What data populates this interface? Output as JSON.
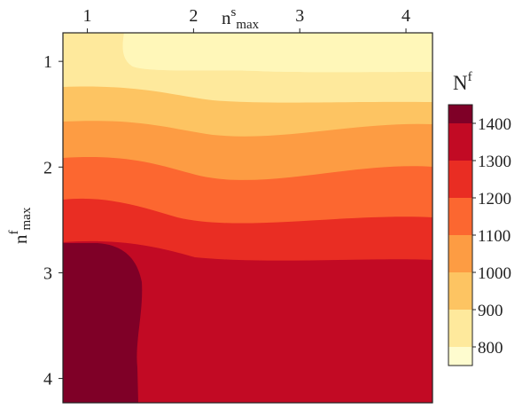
{
  "chart_data": {
    "type": "heatmap",
    "subtype": "filled-contour",
    "x_axis": {
      "label_main": "n",
      "label_sup": "s",
      "label_sub": "max",
      "position": "top",
      "ticks": [
        1,
        2,
        3,
        4
      ],
      "tick_labels": [
        "1",
        "2",
        "3",
        "4"
      ],
      "range": [
        0.77,
        4.25
      ]
    },
    "y_axis": {
      "label_main": "n",
      "label_sup": "f",
      "label_sub": "max",
      "inverted": true,
      "ticks": [
        1,
        2,
        3,
        4
      ],
      "tick_labels": [
        "1",
        "2",
        "3",
        "4"
      ],
      "range": [
        0.73,
        4.23
      ]
    },
    "colorbar": {
      "title_main": "N",
      "title_sup": "f",
      "levels": [
        750,
        800,
        900,
        1000,
        1100,
        1200,
        1300,
        1400,
        1450
      ],
      "tick_values": [
        800,
        900,
        1000,
        1100,
        1200,
        1300,
        1400
      ],
      "tick_labels": [
        "800",
        "900",
        "1000",
        "1100",
        "1200",
        "1300",
        "1400"
      ],
      "colors": [
        "#fefccf",
        "#fee99c",
        "#fdc462",
        "#fd9c43",
        "#fc6730",
        "#e92d23",
        "#c20a24",
        "#7f0027"
      ]
    },
    "contours": [
      {
        "range": "900-1000",
        "min": 900,
        "max": 1000,
        "color": "#fee99c"
      },
      {
        "range": "1000-1100",
        "min": 1000,
        "max": 1100,
        "color": "#fdc462"
      },
      {
        "range": "1100-1200",
        "min": 1100,
        "max": 1200,
        "color": "#fd9c43"
      },
      {
        "range": "1200-1300",
        "min": 1200,
        "max": 1300,
        "color": "#fc6730"
      },
      {
        "range": "1300-1400",
        "min": 1300,
        "max": 1400,
        "color": "#e92d23"
      },
      {
        "range": "1400-1450",
        "min": 1400,
        "max": 1450,
        "color": "#c20a24"
      },
      {
        "range": ">1450",
        "min": 1450,
        "max": null,
        "color": "#7f0027"
      }
    ]
  }
}
